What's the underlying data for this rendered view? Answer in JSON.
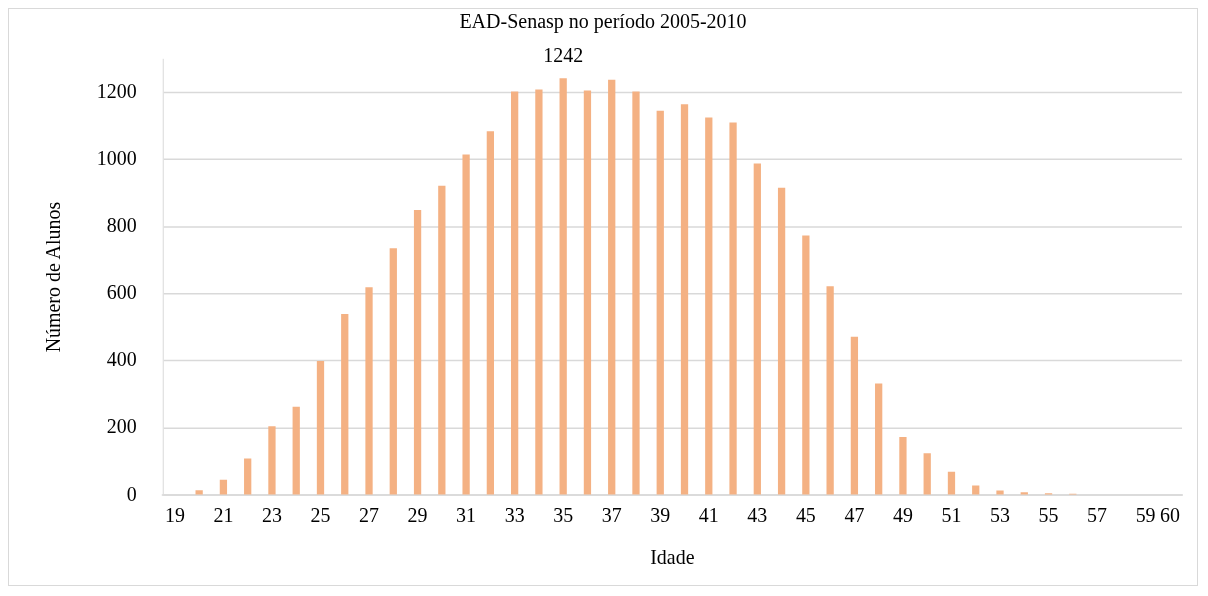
{
  "chart_data": {
    "type": "bar",
    "title": "EAD-Senasp no período 2005-2010",
    "xlabel": "Idade",
    "ylabel": "Número de Alunos",
    "categories": [
      "19",
      null,
      "21",
      null,
      "23",
      null,
      "25",
      null,
      "27",
      null,
      "29",
      null,
      "31",
      null,
      "33",
      null,
      "35",
      null,
      "37",
      null,
      "39",
      null,
      "41",
      null,
      "43",
      null,
      "45",
      null,
      "47",
      null,
      "49",
      null,
      "51",
      null,
      "53",
      null,
      "55",
      null,
      "57",
      null,
      "59",
      "60"
    ],
    "values": [
      0,
      15,
      46,
      110,
      206,
      264,
      400,
      540,
      620,
      736,
      850,
      922,
      1015,
      1084,
      1203,
      1209,
      1242,
      1206,
      1238,
      1203,
      1145,
      1165,
      1125,
      1110,
      988,
      916,
      774,
      623,
      472,
      333,
      174,
      125,
      70,
      29,
      14,
      9,
      6,
      5,
      0,
      0,
      0,
      0
    ],
    "value_labels": [
      null,
      null,
      null,
      null,
      null,
      null,
      null,
      null,
      null,
      null,
      null,
      null,
      null,
      null,
      null,
      null,
      "1242",
      null,
      null,
      null,
      null,
      null,
      null,
      null,
      null,
      null,
      null,
      null,
      null,
      null,
      null,
      null,
      null,
      null,
      null,
      null,
      null,
      null,
      null,
      null,
      null,
      null
    ],
    "color": "#f4b183",
    "ylim": [
      0,
      1300
    ],
    "yticks": [
      0,
      200,
      400,
      600,
      800,
      1000,
      1200
    ],
    "grid": "y",
    "legend": false
  }
}
